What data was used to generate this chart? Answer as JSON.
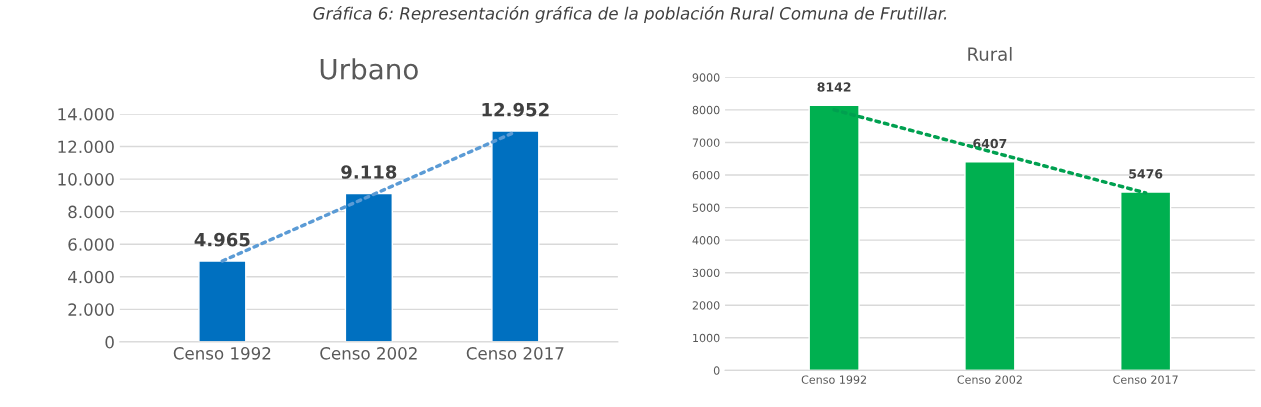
{
  "chart_data": [
    {
      "type": "bar",
      "title": "Urbano",
      "categories": [
        "Censo 1992",
        "Censo 2002",
        "Censo 2017"
      ],
      "series": [
        {
          "color": "#0070c0",
          "values": [
            4965,
            9118,
            12952
          ],
          "value_labels": [
            "4.965",
            "9.118",
            "12.952"
          ]
        },
        {
          "type": "line",
          "color": "#5b9bd5",
          "x": [
            "Censo 1992",
            "Censo 2017"
          ],
          "values": [
            4970,
            12900
          ],
          "line_style": "dotted"
        }
      ],
      "ylim": [
        0,
        14000
      ],
      "yticks": [
        {
          "value": 0,
          "label": "0"
        },
        {
          "value": 2000,
          "label": "2.000"
        },
        {
          "value": 4000,
          "label": "4.000"
        },
        {
          "value": 6000,
          "label": "6.000"
        },
        {
          "value": 8000,
          "label": "8.000"
        },
        {
          "value": 10000,
          "label": "10.000"
        },
        {
          "value": 12000,
          "label": "12.000"
        },
        {
          "value": 14000,
          "label": "14.000"
        }
      ],
      "grid": "y",
      "legend": false,
      "annotations": [
        "Gráfica 6: Representación gráfica de la población Rural Comuna de Frutillar."
      ]
    },
    {
      "type": "bar",
      "title": "Rural",
      "categories": [
        "Censo 1992",
        "Censo 2002",
        "Censo 2017"
      ],
      "series": [
        {
          "color": "#00b050",
          "values": [
            8142,
            6407,
            5476
          ],
          "value_labels": [
            "8142",
            "6407",
            "5476"
          ]
        },
        {
          "type": "line",
          "color": "#00a050",
          "x": [
            "Censo 1992",
            "Censo 2017"
          ],
          "values": [
            8000,
            5450
          ],
          "line_style": "dotted"
        }
      ],
      "ylim": [
        0,
        9000
      ],
      "yticks": [
        0,
        1000,
        2000,
        3000,
        4000,
        5000,
        6000,
        7000,
        8000,
        9000
      ],
      "grid": "y",
      "legend": false
    }
  ]
}
